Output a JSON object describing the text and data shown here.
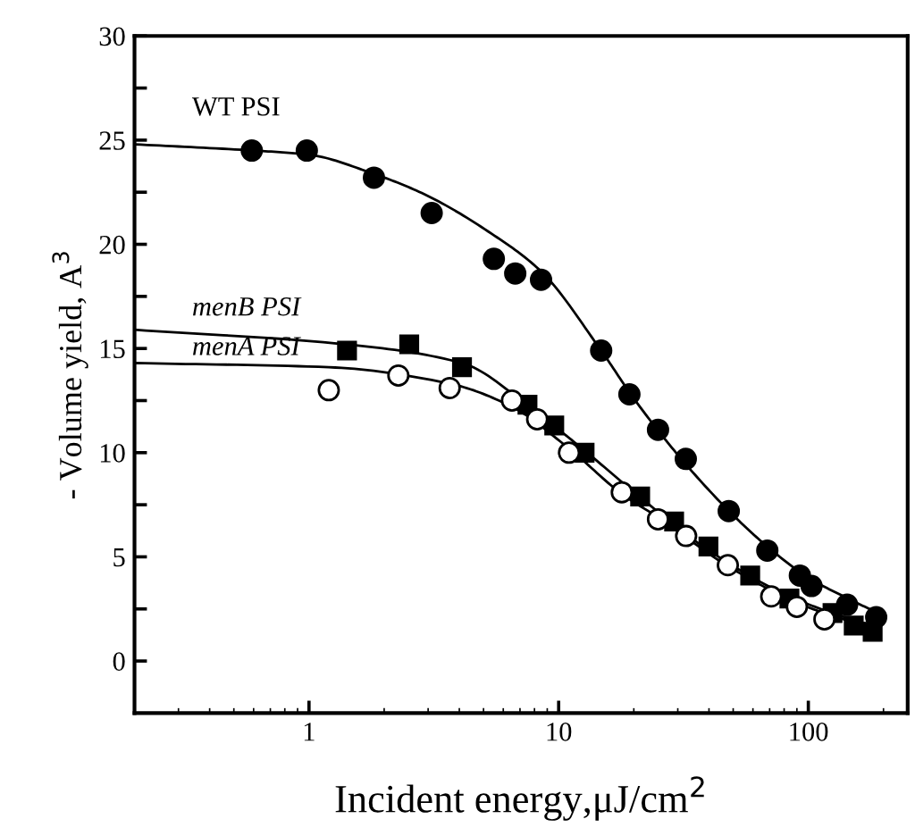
{
  "chart_data": {
    "type": "scatter",
    "xlabel": "Incident energy,μJ/cm$^{2}$",
    "ylabel": "- Volume yield, A$^{3}$",
    "log": "x",
    "xlim": [
      0.2,
      250
    ],
    "xticks": [
      1,
      10,
      100
    ],
    "ylim": [
      -2.5,
      30
    ],
    "yticks": [
      0,
      {
        "value": 2.5,
        "label": null
      },
      5,
      {
        "value": 7.5,
        "label": null
      },
      10,
      {
        "value": 12.5,
        "label": null
      },
      15,
      {
        "value": 17.5,
        "label": null
      },
      20,
      {
        "value": 22.5,
        "label": null
      },
      25,
      {
        "value": 27.5,
        "label": null
      },
      30
    ],
    "grid": false,
    "legend": false,
    "series": [
      {
        "name": "WT PSI",
        "color": "#000000",
        "marker": "circle",
        "x": [
          0.59,
          0.98,
          1.82,
          3.1,
          5.5,
          6.7,
          8.5,
          14.8,
          19.2,
          25,
          32.3,
          48,
          68.5,
          92.5,
          103,
          143,
          187
        ],
        "values": [
          24.5,
          24.5,
          23.2,
          21.5,
          19.3,
          18.6,
          18.3,
          14.9,
          12.8,
          11.1,
          9.7,
          7.2,
          5.3,
          4.1,
          3.6,
          2.7,
          2.1
        ]
      },
      {
        "name": "menB PSI",
        "color": "#000000",
        "marker": "square",
        "x": [
          1.42,
          2.52,
          4.1,
          7.5,
          9.6,
          12.7,
          21.2,
          29,
          39.8,
          58.5,
          84,
          125,
          152,
          181
        ],
        "values": [
          14.9,
          15.2,
          14.1,
          12.3,
          11.3,
          10.0,
          7.9,
          6.7,
          5.5,
          4.1,
          3.0,
          2.3,
          1.7,
          1.4
        ]
      },
      {
        "name": "menA PSI",
        "color": "#ffffff",
        "marker": "circle",
        "x": [
          1.2,
          2.28,
          3.66,
          6.5,
          8.2,
          11.0,
          17.9,
          25,
          32.4,
          47.6,
          71,
          90,
          116
        ],
        "values": [
          13.0,
          13.7,
          13.1,
          12.5,
          11.6,
          10.0,
          8.1,
          6.8,
          6.0,
          4.6,
          3.1,
          2.6,
          2.0
        ]
      },
      {
        "type": "line",
        "color": "#000000",
        "x": [
          0.2,
          0.6,
          1,
          1.8,
          2.9,
          5.4,
          8.5,
          14.8,
          20,
          32,
          50,
          70,
          100,
          150,
          190
        ],
        "values": [
          24.8,
          24.5,
          24.3,
          23.4,
          22.4,
          20.5,
          18.7,
          14.9,
          12.6,
          9.5,
          7.0,
          5.4,
          4.0,
          2.9,
          2.3
        ]
      },
      {
        "type": "line",
        "color": "#000000",
        "x": [
          0.2,
          1.4,
          4.1,
          8,
          12.7,
          21,
          40,
          84,
          125,
          180
        ],
        "values": [
          15.9,
          15.2,
          14.3,
          12.0,
          10.1,
          7.9,
          5.3,
          3.1,
          2.3,
          1.7
        ]
      },
      {
        "type": "line",
        "color": "#000000",
        "x": [
          0.2,
          1.2,
          3.7,
          6.5,
          11,
          18,
          25,
          47,
          90,
          116,
          180
        ],
        "values": [
          14.3,
          14.1,
          13.3,
          12.2,
          10.2,
          8.0,
          6.9,
          4.6,
          2.8,
          2.3,
          1.6
        ]
      }
    ]
  }
}
